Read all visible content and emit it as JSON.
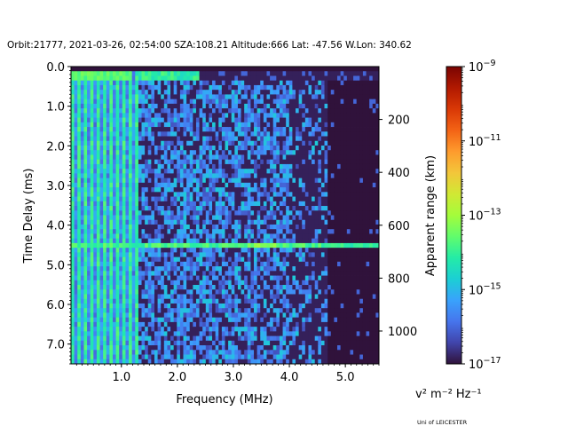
{
  "chart_data": {
    "type": "heatmap",
    "title": "Orbit:21777, 2021-03-26, 02:54:00 SZA:108.21 Altitude:666 Lat: -47.56 W.Lon: 340.62",
    "xlabel": "Frequency (MHz)",
    "ylabel": "Time Delay (ms)",
    "y2label": "Apparent range (km)",
    "xlim": [
      0.1,
      5.6
    ],
    "ylim": [
      7.5,
      0.0
    ],
    "x_ticks": [
      "1.0",
      "2.0",
      "3.0",
      "4.0",
      "5.0"
    ],
    "x_tick_values": [
      1.0,
      2.0,
      3.0,
      4.0,
      5.0
    ],
    "y_ticks": [
      "0.0",
      "1.0",
      "2.0",
      "3.0",
      "4.0",
      "5.0",
      "6.0",
      "7.0"
    ],
    "y_tick_values": [
      0.0,
      1.0,
      2.0,
      3.0,
      4.0,
      5.0,
      6.0,
      7.0
    ],
    "y2_ticks": [
      "200",
      "400",
      "600",
      "800",
      "1000"
    ],
    "y2_tick_values": [
      200,
      400,
      600,
      800,
      1000
    ],
    "km_per_ms": 149.9,
    "colorbar": {
      "label": "v² m⁻² Hz⁻¹",
      "scale": "log",
      "range": [
        1e-17,
        1e-09
      ],
      "ticks": [
        {
          "base": "10",
          "exp": "−9",
          "value": 1e-09
        },
        {
          "base": "10",
          "exp": "−11",
          "value": 1e-11
        },
        {
          "base": "10",
          "exp": "−13",
          "value": 1e-13
        },
        {
          "base": "10",
          "exp": "−15",
          "value": 1e-15
        },
        {
          "base": "10",
          "exp": "−17",
          "value": 1e-17
        }
      ],
      "colormap": [
        "#30123b",
        "#4145ab",
        "#4675ed",
        "#39a2fc",
        "#1bcfd4",
        "#24eca6",
        "#61fc6c",
        "#a4fc3b",
        "#d1e834",
        "#f3c63a",
        "#fe9b2d",
        "#f36315",
        "#d93806",
        "#b11901",
        "#7a0402"
      ]
    },
    "features": {
      "surface_echo_delay_ms": 4.55,
      "band_top_delay_ms": 0.15,
      "noise_columns_max_freq_mhz": 1.3,
      "noise_fades_above_mhz": 4.7
    }
  },
  "footer": {
    "credit": "Uni of LEICESTER"
  }
}
